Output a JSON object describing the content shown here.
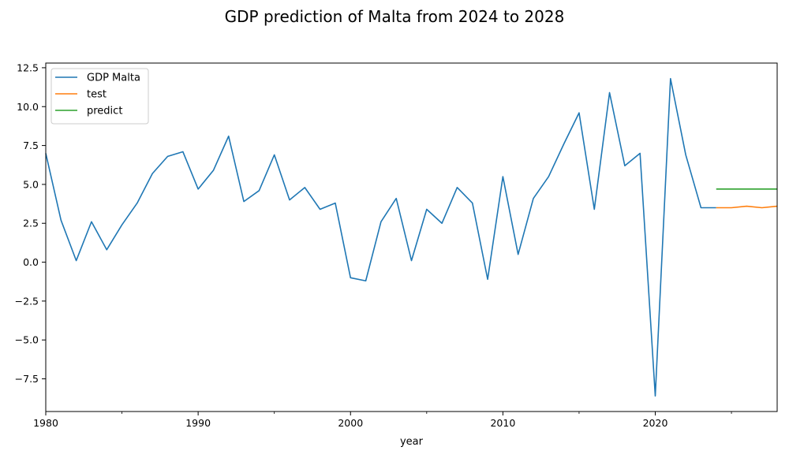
{
  "chart_data": {
    "type": "line",
    "title": "GDP prediction of Malta from 2024 to 2028",
    "xlabel": "year",
    "ylabel": "",
    "xlim": [
      1980,
      2028
    ],
    "ylim": [
      -9.6,
      12.8
    ],
    "x_ticks": [
      1980,
      1990,
      2000,
      2010,
      2020
    ],
    "y_ticks": [
      -7.5,
      -5.0,
      -2.5,
      0.0,
      2.5,
      5.0,
      7.5,
      10.0,
      12.5
    ],
    "y_tick_labels": [
      "−7.5",
      "−5.0",
      "−2.5",
      "0.0",
      "2.5",
      "5.0",
      "7.5",
      "10.0",
      "12.5"
    ],
    "grid": false,
    "legend_position": "top-left",
    "series": [
      {
        "name": "GDP Malta",
        "color": "#1f77b4",
        "x": [
          1980,
          1981,
          1982,
          1983,
          1984,
          1985,
          1986,
          1987,
          1988,
          1989,
          1990,
          1991,
          1992,
          1993,
          1994,
          1995,
          1996,
          1997,
          1998,
          1999,
          2000,
          2001,
          2002,
          2003,
          2004,
          2005,
          2006,
          2007,
          2008,
          2009,
          2010,
          2011,
          2012,
          2013,
          2014,
          2015,
          2016,
          2017,
          2018,
          2019,
          2020,
          2021,
          2022,
          2023,
          2024
        ],
        "values": [
          7.0,
          2.7,
          0.1,
          2.6,
          0.8,
          2.4,
          3.8,
          5.7,
          6.8,
          7.1,
          4.7,
          5.9,
          8.1,
          3.9,
          4.6,
          6.9,
          4.0,
          4.8,
          3.4,
          3.8,
          -1.0,
          -1.2,
          2.6,
          4.1,
          0.1,
          3.4,
          2.5,
          4.8,
          3.8,
          -1.1,
          5.5,
          0.5,
          4.1,
          5.5,
          7.6,
          9.6,
          3.4,
          10.9,
          6.2,
          7.0,
          -8.6,
          11.8,
          6.9,
          3.5,
          3.5
        ]
      },
      {
        "name": "test",
        "color": "#ff7f0e",
        "x": [
          2024,
          2025,
          2026,
          2027,
          2028
        ],
        "values": [
          3.5,
          3.5,
          3.6,
          3.5,
          3.6
        ]
      },
      {
        "name": "predict",
        "color": "#2ca02c",
        "x": [
          2024,
          2025,
          2026,
          2027,
          2028
        ],
        "values": [
          4.7,
          4.7,
          4.7,
          4.7,
          4.7
        ]
      }
    ]
  }
}
